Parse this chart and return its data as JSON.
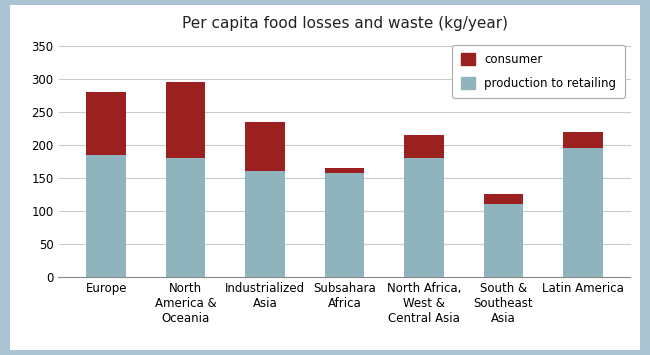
{
  "title": "Per capita food losses and waste (kg/year)",
  "categories": [
    "Europe",
    "North\nAmerica &\nOceania",
    "Industrialized\nAsia",
    "Subsahara\nAfrica",
    "North Africa,\nWest &\nCentral Asia",
    "South &\nSoutheast\nAsia",
    "Latin America"
  ],
  "production_to_retailing": [
    185,
    180,
    160,
    158,
    180,
    110,
    195
  ],
  "consumer": [
    95,
    115,
    75,
    7,
    35,
    15,
    25
  ],
  "ylim": [
    0,
    360
  ],
  "yticks": [
    0,
    50,
    100,
    150,
    200,
    250,
    300,
    350
  ],
  "bar_color_production": "#90b4be",
  "bar_color_consumer": "#9b2020",
  "legend_labels": [
    "consumer",
    "production to retailing"
  ],
  "background_color": "#ffffff",
  "outer_border_color": "#aac4d4",
  "grid_color": "#cccccc",
  "figsize": [
    6.5,
    3.55
  ],
  "dpi": 100,
  "title_fontsize": 11,
  "tick_fontsize": 8.5
}
